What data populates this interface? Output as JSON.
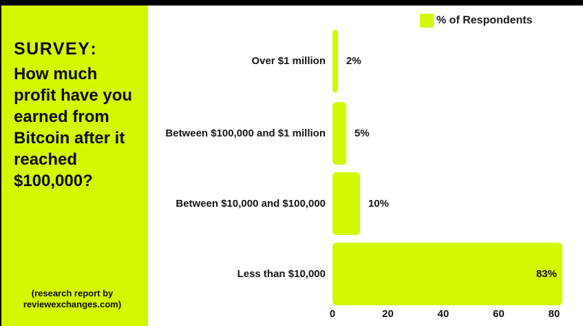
{
  "colors": {
    "accent": "#D2F802",
    "top_bar": "#000000",
    "background": "#FFFFFF",
    "text": "#141414"
  },
  "sidebar": {
    "title": "SURVEY",
    "title_colon": ":",
    "question": "How much profit have you earned from Bitcoin after it reached $100,000?",
    "question_lines": [
      "How much",
      "profit have you",
      "earned from",
      "Bitcoin after it",
      "reached",
      "$100,000?"
    ],
    "attribution": "(research report by reviewexchanges.com)",
    "attribution_lines": [
      "(research report by",
      "reviewexchanges.com)"
    ]
  },
  "chart_data": {
    "type": "bar",
    "orientation": "horizontal",
    "title": "",
    "xlabel": "",
    "ylabel": "",
    "legend": {
      "label": "% of Respondents",
      "position": "top-right",
      "swatch_color": "#D2F802"
    },
    "categories": [
      "Over $1 million",
      "Between $100,000 and $1 million",
      "Between $10,000 and $100,000",
      "Less than $10,000"
    ],
    "values": [
      2,
      5,
      10,
      83
    ],
    "value_labels": [
      "2%",
      "5%",
      "10%",
      "83%"
    ],
    "xlim": [
      0,
      85
    ],
    "xticks": [
      0,
      20,
      40,
      60,
      80
    ],
    "grid": false,
    "bar_color": "#D2F802"
  }
}
